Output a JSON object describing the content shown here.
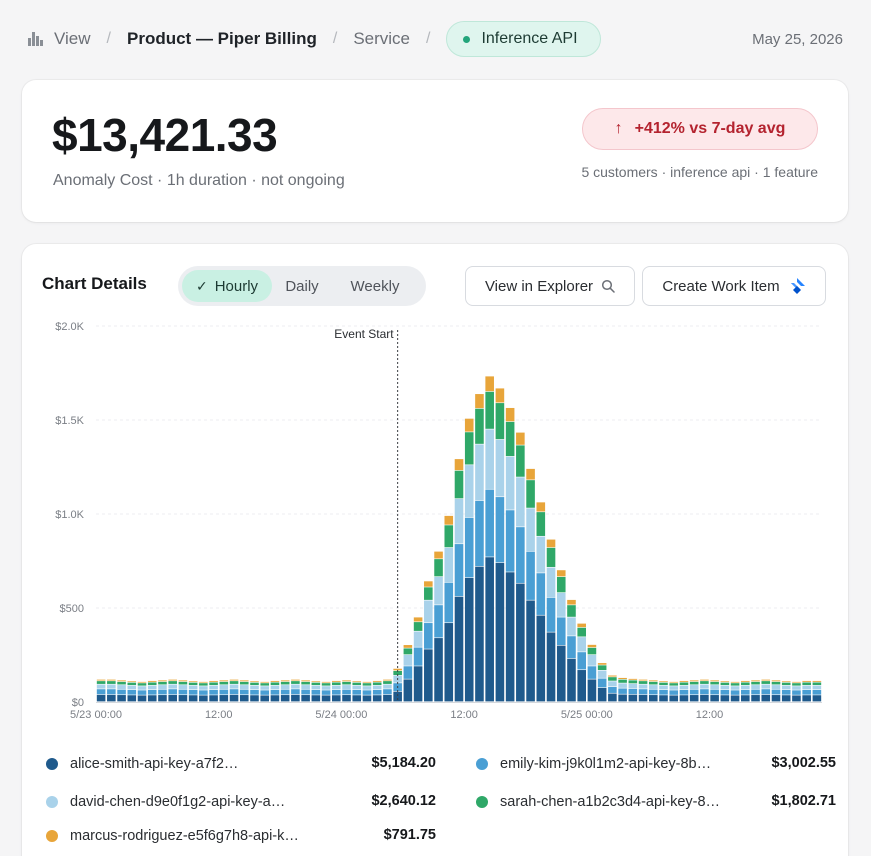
{
  "breadcrumb": {
    "view_label": "View",
    "product_label": "Product — Piper Billing",
    "service_label": "Service",
    "service_pill": "Inference API",
    "separator": "/",
    "date": "May 25, 2026"
  },
  "summary": {
    "amount": "$13,421.33",
    "subtitle": "Anomaly Cost · 1h duration · not ongoing",
    "delta_label": "+412% vs 7-day avg",
    "delta_arrow": "↑",
    "meta": "5 customers · inference api · 1 feature"
  },
  "chart_panel": {
    "title": "Chart Details",
    "tabs": [
      {
        "label": "Hourly",
        "active": true
      },
      {
        "label": "Daily",
        "active": false
      },
      {
        "label": "Weekly",
        "active": false
      }
    ],
    "explorer_button": "View in Explorer",
    "work_item_button": "Create Work Item"
  },
  "colors": {
    "alice": "#1f5a8c",
    "emily": "#4a9fd4",
    "david": "#a9d2ea",
    "sarah": "#2fa868",
    "marcus": "#e8a53a"
  },
  "chart_data": {
    "type": "bar",
    "stacked": true,
    "ylim": [
      0,
      2000
    ],
    "y_ticks": [
      "$0",
      "$500",
      "$1.0K",
      "$1.5K",
      "$2.0K"
    ],
    "x_tick_labels": [
      {
        "index": 0,
        "label": "5/23 00:00"
      },
      {
        "index": 12,
        "label": "12:00"
      },
      {
        "index": 24,
        "label": "5/24 00:00"
      },
      {
        "index": 36,
        "label": "12:00"
      },
      {
        "index": 48,
        "label": "5/25 00:00"
      },
      {
        "index": 60,
        "label": "12:00"
      }
    ],
    "annotation": {
      "label": "Event Start",
      "index": 29.5
    },
    "grid": true,
    "series": [
      {
        "name": "alice-smith-api-key-a7f2…",
        "key": "alice",
        "total": "$5,184.20",
        "values": [
          38,
          38,
          37,
          36,
          35,
          36,
          37,
          38,
          37,
          36,
          35,
          36,
          37,
          38,
          37,
          36,
          35,
          36,
          37,
          38,
          37,
          36,
          35,
          36,
          37,
          36,
          35,
          36,
          38,
          55,
          120,
          190,
          280,
          340,
          420,
          560,
          660,
          720,
          770,
          740,
          690,
          630,
          540,
          460,
          370,
          300,
          230,
          170,
          120,
          75,
          45,
          40,
          39,
          38,
          37,
          36,
          35,
          36,
          37,
          38,
          37,
          36,
          35,
          36,
          37,
          38,
          37,
          36,
          35,
          36,
          36
        ]
      },
      {
        "name": "emily-kim-j9k0l1m2-api-key-8b…",
        "key": "emily",
        "total": "$3,002.55",
        "values": [
          30,
          30,
          29,
          28,
          27,
          28,
          29,
          30,
          29,
          28,
          27,
          28,
          29,
          30,
          29,
          28,
          27,
          28,
          29,
          30,
          29,
          28,
          27,
          28,
          29,
          28,
          27,
          28,
          30,
          45,
          70,
          100,
          140,
          175,
          215,
          280,
          320,
          350,
          360,
          350,
          330,
          300,
          260,
          225,
          185,
          150,
          120,
          95,
          70,
          50,
          35,
          32,
          31,
          30,
          29,
          28,
          27,
          28,
          29,
          30,
          29,
          28,
          27,
          28,
          29,
          30,
          29,
          28,
          27,
          28,
          28
        ]
      },
      {
        "name": "david-chen-d9e0f1g2-api-key-a…",
        "key": "david",
        "total": "$2,640.12",
        "values": [
          25,
          25,
          24,
          23,
          22,
          23,
          24,
          25,
          24,
          23,
          22,
          23,
          24,
          25,
          24,
          23,
          22,
          23,
          24,
          25,
          24,
          23,
          22,
          23,
          24,
          23,
          22,
          23,
          25,
          40,
          60,
          85,
          120,
          150,
          185,
          240,
          280,
          300,
          320,
          305,
          285,
          265,
          230,
          195,
          160,
          130,
          100,
          80,
          60,
          42,
          30,
          27,
          26,
          25,
          24,
          23,
          22,
          23,
          24,
          25,
          24,
          23,
          22,
          23,
          24,
          25,
          24,
          23,
          22,
          23,
          23
        ]
      },
      {
        "name": "sarah-chen-a1b2c3d4-api-key-8…",
        "key": "sarah",
        "total": "$1,802.71",
        "values": [
          18,
          18,
          17,
          16,
          16,
          17,
          17,
          18,
          17,
          16,
          16,
          17,
          17,
          18,
          17,
          16,
          16,
          17,
          17,
          18,
          17,
          16,
          16,
          17,
          17,
          16,
          16,
          17,
          18,
          25,
          35,
          50,
          70,
          95,
          120,
          150,
          175,
          190,
          200,
          195,
          185,
          170,
          150,
          130,
          105,
          85,
          65,
          50,
          38,
          28,
          22,
          20,
          19,
          18,
          17,
          16,
          16,
          17,
          17,
          18,
          17,
          16,
          16,
          17,
          17,
          18,
          17,
          16,
          16,
          17,
          17
        ]
      },
      {
        "name": "marcus-rodriguez-e5f6g7h8-api-k…",
        "key": "marcus",
        "total": "$791.75",
        "values": [
          8,
          8,
          8,
          7,
          7,
          8,
          8,
          8,
          8,
          7,
          7,
          8,
          8,
          8,
          8,
          7,
          7,
          8,
          8,
          8,
          8,
          7,
          7,
          8,
          8,
          7,
          7,
          8,
          8,
          12,
          18,
          25,
          32,
          40,
          50,
          62,
          72,
          78,
          82,
          78,
          74,
          68,
          60,
          52,
          44,
          36,
          28,
          22,
          16,
          12,
          9,
          9,
          8,
          8,
          8,
          7,
          7,
          8,
          8,
          8,
          8,
          7,
          7,
          8,
          8,
          8,
          8,
          7,
          7,
          8,
          8
        ]
      }
    ]
  }
}
